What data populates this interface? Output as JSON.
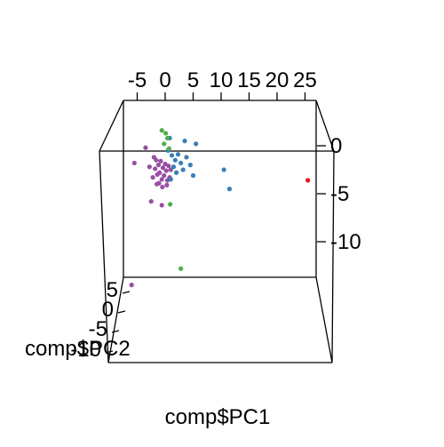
{
  "chart_data": {
    "type": "scatter",
    "title": "",
    "xlabel": "comp$PC1",
    "ylabel": "comp$PC2",
    "zlabel": "",
    "projection": "3d",
    "x_ticks": [
      "-5",
      "0",
      "5",
      "10",
      "15",
      "20",
      "25"
    ],
    "y_ticks": [
      "5",
      "0",
      "-5",
      "-10"
    ],
    "z_ticks": [
      "0",
      "-5",
      "-10"
    ],
    "xlim": [
      -7,
      27
    ],
    "zlim": [
      -13,
      2
    ],
    "grid": false,
    "legend": "none",
    "series": [
      {
        "color": "#984EA3",
        "points": [
          {
            "x": -5.5,
            "z": -1.8
          },
          {
            "x": -3.5,
            "z": -0.2
          },
          {
            "x": -2.8,
            "z": -2.2
          },
          {
            "x": -2.0,
            "z": -1.2
          },
          {
            "x": -1.8,
            "z": -2.4
          },
          {
            "x": -1.6,
            "z": -1.5
          },
          {
            "x": -1.4,
            "z": -3.0
          },
          {
            "x": -1.2,
            "z": -2.0
          },
          {
            "x": -1.0,
            "z": -2.8
          },
          {
            "x": -0.8,
            "z": -1.6
          },
          {
            "x": -0.6,
            "z": -3.5
          },
          {
            "x": -0.4,
            "z": -2.3
          },
          {
            "x": -0.2,
            "z": -3.1
          },
          {
            "x": 0.0,
            "z": -1.9
          },
          {
            "x": 0.2,
            "z": -2.6
          },
          {
            "x": 0.4,
            "z": -3.6
          },
          {
            "x": 0.6,
            "z": -2.1
          },
          {
            "x": 0.8,
            "z": -3.3
          },
          {
            "x": 1.0,
            "z": -2.5
          },
          {
            "x": -1.5,
            "z": -4.0
          },
          {
            "x": -0.5,
            "z": -4.3
          },
          {
            "x": 0.3,
            "z": -4.1
          },
          {
            "x": -2.2,
            "z": -3.3
          },
          {
            "x": -1.1,
            "z": -3.9
          },
          {
            "x": -2.5,
            "z": -5.8
          },
          {
            "x": -0.6,
            "z": -6.2
          },
          {
            "x": -6.0,
            "z": -14.5
          }
        ]
      },
      {
        "color": "#377EB8",
        "points": [
          {
            "x": 0.5,
            "z": -0.5
          },
          {
            "x": 1.2,
            "z": -1.0
          },
          {
            "x": 1.8,
            "z": -1.5
          },
          {
            "x": 2.3,
            "z": -0.9
          },
          {
            "x": 2.8,
            "z": -1.8
          },
          {
            "x": 1.5,
            "z": -2.2
          },
          {
            "x": 3.2,
            "z": -2.5
          },
          {
            "x": 2.0,
            "z": -2.8
          },
          {
            "x": 3.8,
            "z": -1.2
          },
          {
            "x": 4.5,
            "z": -2.0
          },
          {
            "x": 3.5,
            "z": 0.5
          },
          {
            "x": 5.5,
            "z": 0.2
          },
          {
            "x": 0.8,
            "z": 0.8
          },
          {
            "x": 5.0,
            "z": -3.1
          },
          {
            "x": 10.5,
            "z": -2.5
          },
          {
            "x": 11.5,
            "z": -4.5
          },
          {
            "x": 1.0,
            "z": -3.5
          }
        ]
      },
      {
        "color": "#4DAF4A",
        "points": [
          {
            "x": -0.6,
            "z": 1.6
          },
          {
            "x": 0.1,
            "z": 1.3
          },
          {
            "x": 0.4,
            "z": 0.8
          },
          {
            "x": -0.2,
            "z": 0.2
          },
          {
            "x": 0.7,
            "z": -0.3
          },
          {
            "x": 0.9,
            "z": -6.1
          },
          {
            "x": 2.8,
            "z": -12.8
          }
        ]
      },
      {
        "color": "#E41A1C",
        "points": [
          {
            "x": 25.5,
            "z": -3.6
          }
        ]
      }
    ]
  }
}
